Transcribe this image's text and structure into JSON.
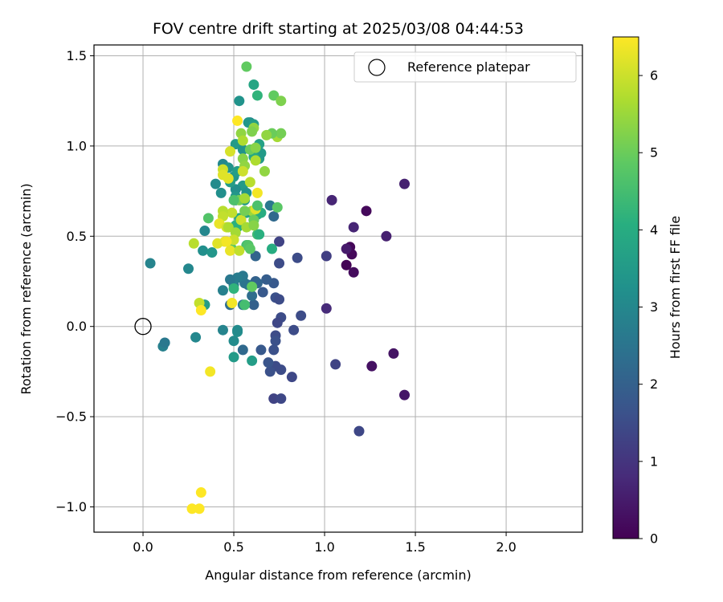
{
  "chart_data": {
    "type": "scatter",
    "title": "FOV centre drift starting at 2025/03/08 04:44:53",
    "xlabel": "Angular distance from reference (arcmin)",
    "ylabel": "Rotation from reference (arcmin)",
    "xlim": [
      -0.27,
      2.42
    ],
    "ylim": [
      -1.14,
      1.56
    ],
    "xticks": [
      {
        "v": 0.0,
        "label": "0.0"
      },
      {
        "v": 0.5,
        "label": "0.5"
      },
      {
        "v": 1.0,
        "label": "1.0"
      },
      {
        "v": 1.5,
        "label": "1.5"
      },
      {
        "v": 2.0,
        "label": "2.0"
      }
    ],
    "yticks": [
      {
        "v": -1.0,
        "label": "−1.0"
      },
      {
        "v": -0.5,
        "label": "−0.5"
      },
      {
        "v": 0.0,
        "label": "0.0"
      },
      {
        "v": 0.5,
        "label": "0.5"
      },
      {
        "v": 1.0,
        "label": "1.0"
      },
      {
        "v": 1.5,
        "label": "1.5"
      }
    ],
    "grid": true,
    "legend": {
      "placement": "top-right",
      "entries": [
        "Reference platepar"
      ]
    },
    "reference_point": {
      "x": 0.0,
      "y": 0.0
    },
    "colorbar": {
      "label": "Hours from first FF file",
      "range": [
        0,
        6.5
      ],
      "colormap": "viridis",
      "ticks": [
        {
          "v": 0,
          "label": "0"
        },
        {
          "v": 1,
          "label": "1"
        },
        {
          "v": 2,
          "label": "2"
        },
        {
          "v": 3,
          "label": "3"
        },
        {
          "v": 4,
          "label": "4"
        },
        {
          "v": 5,
          "label": "5"
        },
        {
          "v": 6,
          "label": "6"
        }
      ]
    },
    "points": [
      [
        1.12,
        0.34,
        0.05
      ],
      [
        1.14,
        0.44,
        0.1
      ],
      [
        1.15,
        0.4,
        0.15
      ],
      [
        1.16,
        0.3,
        0.2
      ],
      [
        1.23,
        0.64,
        0.15
      ],
      [
        1.26,
        -0.22,
        0.3
      ],
      [
        1.38,
        -0.15,
        0.35
      ],
      [
        1.44,
        -0.38,
        0.4
      ],
      [
        1.44,
        0.79,
        0.6
      ],
      [
        1.34,
        0.5,
        0.6
      ],
      [
        1.16,
        0.55,
        0.7
      ],
      [
        1.04,
        0.7,
        0.7
      ],
      [
        1.12,
        0.43,
        0.5
      ],
      [
        1.01,
        0.1,
        0.8
      ],
      [
        1.01,
        0.39,
        1.2
      ],
      [
        1.06,
        -0.21,
        1.3
      ],
      [
        1.19,
        -0.58,
        1.4
      ],
      [
        0.87,
        0.06,
        1.5
      ],
      [
        0.83,
        -0.02,
        1.5
      ],
      [
        0.82,
        -0.28,
        1.4
      ],
      [
        0.85,
        0.38,
        1.5
      ],
      [
        0.75,
        0.47,
        1.3
      ],
      [
        0.75,
        0.35,
        1.5
      ],
      [
        0.76,
        0.05,
        1.5
      ],
      [
        0.74,
        0.02,
        1.4
      ],
      [
        0.73,
        -0.05,
        1.5
      ],
      [
        0.73,
        -0.08,
        1.6
      ],
      [
        0.72,
        -0.13,
        1.6
      ],
      [
        0.73,
        -0.22,
        1.5
      ],
      [
        0.76,
        -0.24,
        1.5
      ],
      [
        0.72,
        -0.4,
        1.3
      ],
      [
        0.76,
        -0.4,
        1.4
      ],
      [
        0.7,
        -0.25,
        1.6
      ],
      [
        0.69,
        -0.2,
        1.7
      ],
      [
        0.65,
        -0.13,
        1.8
      ],
      [
        0.73,
        0.16,
        1.6
      ],
      [
        0.75,
        0.15,
        1.5
      ],
      [
        0.72,
        0.24,
        1.8
      ],
      [
        0.68,
        0.26,
        1.9
      ],
      [
        0.66,
        0.19,
        1.8
      ],
      [
        0.72,
        0.61,
        2.2
      ],
      [
        0.7,
        0.67,
        2.6
      ],
      [
        0.62,
        0.39,
        2.1
      ],
      [
        0.62,
        0.25,
        2.0
      ],
      [
        0.63,
        0.24,
        2.1
      ],
      [
        0.61,
        0.12,
        2.0
      ],
      [
        0.6,
        0.17,
        2.3
      ],
      [
        0.58,
        0.23,
        2.4
      ],
      [
        0.56,
        0.24,
        2.5
      ],
      [
        0.55,
        0.28,
        2.6
      ],
      [
        0.55,
        0.12,
        2.5
      ],
      [
        0.52,
        0.27,
        2.7
      ],
      [
        0.5,
        0.23,
        2.8
      ],
      [
        0.48,
        0.26,
        2.6
      ],
      [
        0.48,
        0.12,
        2.3
      ],
      [
        0.44,
        0.2,
        2.8
      ],
      [
        0.5,
        -0.08,
        3.1
      ],
      [
        0.52,
        -0.03,
        3.2
      ],
      [
        0.52,
        -0.02,
        3.1
      ],
      [
        0.44,
        -0.02,
        2.9
      ],
      [
        0.55,
        -0.13,
        2.2
      ],
      [
        0.5,
        -0.17,
        3.5
      ],
      [
        0.6,
        -0.19,
        3.6
      ],
      [
        0.29,
        -0.06,
        3.0
      ],
      [
        0.11,
        -0.11,
        2.8
      ],
      [
        0.12,
        -0.09,
        2.6
      ],
      [
        0.04,
        0.35,
        2.9
      ],
      [
        0.25,
        0.32,
        3.0
      ],
      [
        0.33,
        0.42,
        3.2
      ],
      [
        0.38,
        0.41,
        3.4
      ],
      [
        0.34,
        0.12,
        3.3
      ],
      [
        0.34,
        0.12,
        3.6
      ],
      [
        0.34,
        0.53,
        3.0
      ],
      [
        0.4,
        0.79,
        3.1
      ],
      [
        0.43,
        0.74,
        3.2
      ],
      [
        0.44,
        0.9,
        3.0
      ],
      [
        0.47,
        0.88,
        3.3
      ],
      [
        0.5,
        0.83,
        3.4
      ],
      [
        0.52,
        0.86,
        3.6
      ],
      [
        0.51,
        1.01,
        3.5
      ],
      [
        0.55,
        0.98,
        3.3
      ],
      [
        0.59,
        1.13,
        3.0
      ],
      [
        0.58,
        1.13,
        3.4
      ],
      [
        0.61,
        1.12,
        3.6
      ],
      [
        0.53,
        1.25,
        3.3
      ],
      [
        0.61,
        1.34,
        3.8
      ],
      [
        0.63,
        1.28,
        4.2
      ],
      [
        0.64,
        1.01,
        3.7
      ],
      [
        0.62,
        0.98,
        3.8
      ],
      [
        0.65,
        0.96,
        3.5
      ],
      [
        0.64,
        0.93,
        3.5
      ],
      [
        0.61,
        0.94,
        3.9
      ],
      [
        0.55,
        0.78,
        3.5
      ],
      [
        0.57,
        0.74,
        3.3
      ],
      [
        0.56,
        0.7,
        3.5
      ],
      [
        0.51,
        0.7,
        3.4
      ],
      [
        0.51,
        0.76,
        3.2
      ],
      [
        0.51,
        0.72,
        3.4
      ],
      [
        0.48,
        0.8,
        3.6
      ],
      [
        0.63,
        0.62,
        3.8
      ],
      [
        0.65,
        0.63,
        4.0
      ],
      [
        0.57,
        0.63,
        3.8
      ],
      [
        0.53,
        0.6,
        3.9
      ],
      [
        0.52,
        0.55,
        4.1
      ],
      [
        0.51,
        0.56,
        4.1
      ],
      [
        0.61,
        0.59,
        4.2
      ],
      [
        0.63,
        0.51,
        4.4
      ],
      [
        0.64,
        0.51,
        4.1
      ],
      [
        0.57,
        0.45,
        4.5
      ],
      [
        0.58,
        0.45,
        4.7
      ],
      [
        0.59,
        0.43,
        4.8
      ],
      [
        0.71,
        0.43,
        4.0
      ],
      [
        0.49,
        0.43,
        4.8
      ],
      [
        0.5,
        0.21,
        4.2
      ],
      [
        0.56,
        0.12,
        4.5
      ],
      [
        0.6,
        0.22,
        4.9
      ],
      [
        0.57,
        1.44,
        4.9
      ],
      [
        0.72,
        1.28,
        4.9
      ],
      [
        0.76,
        1.25,
        5.2
      ],
      [
        0.74,
        1.05,
        5.6
      ],
      [
        0.76,
        1.07,
        5.1
      ],
      [
        0.71,
        1.07,
        5.0
      ],
      [
        0.68,
        1.06,
        5.4
      ],
      [
        0.61,
        1.1,
        5.4
      ],
      [
        0.6,
        1.08,
        5.2
      ],
      [
        0.54,
        1.07,
        5.4
      ],
      [
        0.55,
        1.03,
        5.7
      ],
      [
        0.59,
        0.98,
        5.0
      ],
      [
        0.62,
        0.99,
        5.3
      ],
      [
        0.55,
        0.93,
        5.3
      ],
      [
        0.56,
        0.89,
        5.4
      ],
      [
        0.62,
        0.92,
        5.7
      ],
      [
        0.67,
        0.86,
        5.4
      ],
      [
        0.48,
        0.97,
        6.1
      ],
      [
        0.44,
        0.87,
        6.0
      ],
      [
        0.44,
        0.84,
        6.2
      ],
      [
        0.47,
        0.82,
        6.2
      ],
      [
        0.55,
        0.86,
        6.0
      ],
      [
        0.59,
        0.8,
        5.8
      ],
      [
        0.53,
        0.7,
        5.1
      ],
      [
        0.56,
        0.71,
        5.6
      ],
      [
        0.5,
        0.7,
        4.6
      ],
      [
        0.49,
        0.63,
        5.9
      ],
      [
        0.44,
        0.64,
        5.8
      ],
      [
        0.44,
        0.61,
        5.9
      ],
      [
        0.42,
        0.57,
        6.3
      ],
      [
        0.46,
        0.55,
        6.1
      ],
      [
        0.47,
        0.55,
        5.7
      ],
      [
        0.51,
        0.52,
        5.6
      ],
      [
        0.5,
        0.48,
        6.0
      ],
      [
        0.45,
        0.47,
        6.3
      ],
      [
        0.41,
        0.46,
        6.2
      ],
      [
        0.46,
        0.47,
        6.4
      ],
      [
        0.48,
        0.42,
        6.3
      ],
      [
        0.53,
        0.42,
        5.9
      ],
      [
        0.54,
        0.59,
        6.0
      ],
      [
        0.57,
        0.55,
        5.6
      ],
      [
        0.6,
        0.64,
        5.5
      ],
      [
        0.62,
        0.65,
        6.2
      ],
      [
        0.63,
        0.74,
        6.4
      ],
      [
        0.61,
        0.59,
        5.0
      ],
      [
        0.61,
        0.56,
        5.3
      ],
      [
        0.36,
        0.6,
        4.7
      ],
      [
        0.28,
        0.46,
        5.8
      ],
      [
        0.31,
        0.13,
        5.9
      ],
      [
        0.32,
        0.09,
        6.5
      ],
      [
        0.49,
        0.13,
        6.4
      ],
      [
        0.37,
        -0.25,
        6.4
      ],
      [
        0.32,
        -0.92,
        6.5
      ],
      [
        0.27,
        -1.01,
        6.5
      ],
      [
        0.31,
        -1.01,
        6.5
      ],
      [
        0.52,
        1.14,
        6.5
      ],
      [
        0.74,
        0.66,
        4.8
      ],
      [
        0.56,
        0.64,
        5.1
      ],
      [
        0.63,
        0.67,
        4.6
      ]
    ]
  }
}
